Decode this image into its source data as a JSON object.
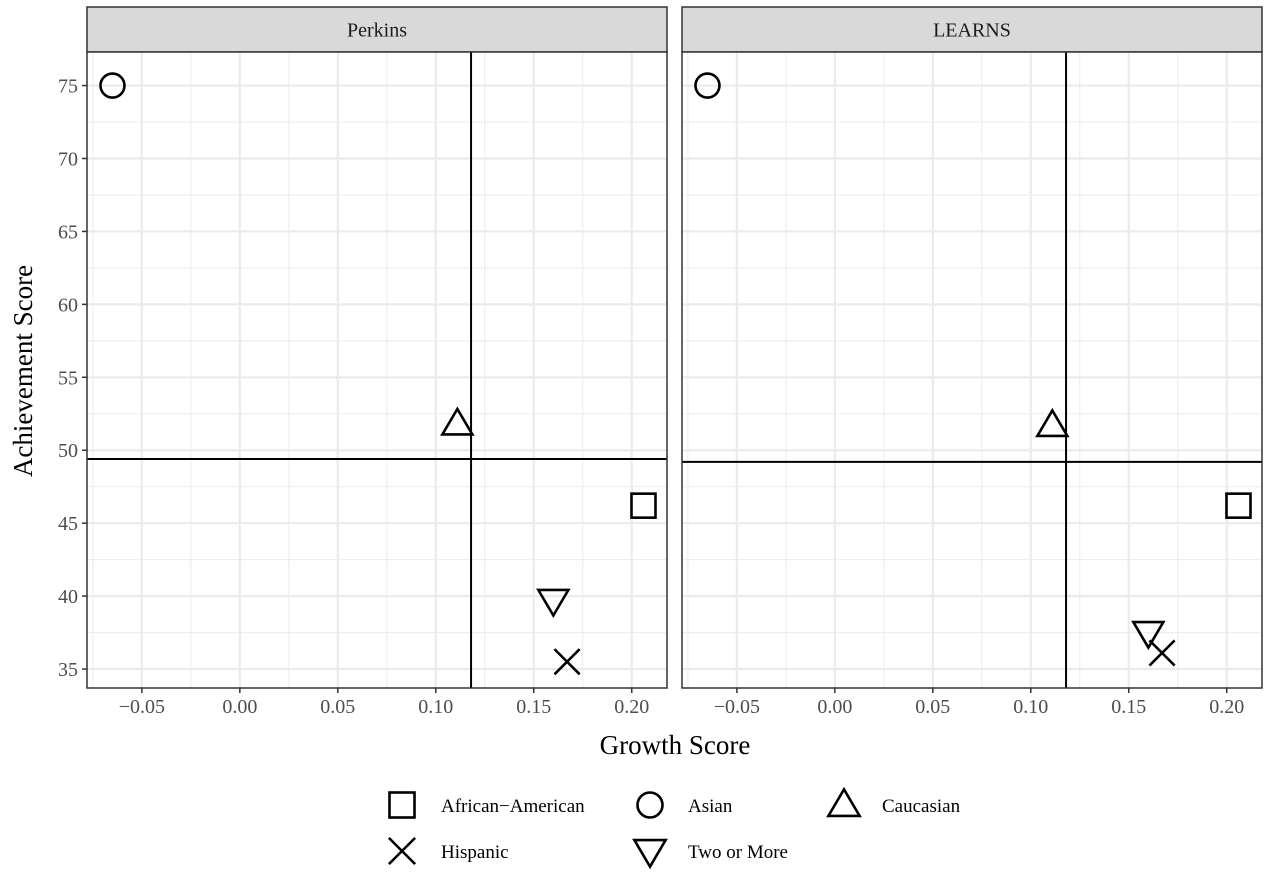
{
  "chart_data": {
    "type": "scatter",
    "xlabel": "Growth Score",
    "ylabel": "Achievement Score",
    "xlim": [
      -0.078,
      0.218
    ],
    "ylim": [
      33.7,
      77.3
    ],
    "x_ticks": [
      -0.05,
      0.0,
      0.05,
      0.1,
      0.15,
      0.2
    ],
    "x_tick_labels": [
      "−0.05",
      "0.00",
      "0.05",
      "0.10",
      "0.15",
      "0.20"
    ],
    "y_ticks": [
      35,
      40,
      45,
      50,
      55,
      60,
      65,
      70,
      75
    ],
    "y_tick_labels": [
      "35",
      "40",
      "45",
      "50",
      "55",
      "60",
      "65",
      "70",
      "75"
    ],
    "grid": true,
    "legend_position": "bottom",
    "legend": [
      {
        "name": "African−American",
        "shape": "square"
      },
      {
        "name": "Asian",
        "shape": "circle"
      },
      {
        "name": "Caucasian",
        "shape": "triangle-up"
      },
      {
        "name": "Hispanic",
        "shape": "cross"
      },
      {
        "name": "Two or More",
        "shape": "triangle-down"
      }
    ],
    "panels": [
      {
        "title": "Perkins",
        "vline_x": 0.118,
        "hline_y": 49.4,
        "points": [
          {
            "group": "African−American",
            "x": 0.206,
            "y": 46.2
          },
          {
            "group": "Asian",
            "x": -0.065,
            "y": 75.0
          },
          {
            "group": "Caucasian",
            "x": 0.111,
            "y": 51.8
          },
          {
            "group": "Hispanic",
            "x": 0.167,
            "y": 35.5
          },
          {
            "group": "Two or More",
            "x": 0.16,
            "y": 39.7
          }
        ]
      },
      {
        "title": "LEARNS",
        "vline_x": 0.118,
        "hline_y": 49.2,
        "points": [
          {
            "group": "African−American",
            "x": 0.206,
            "y": 46.2
          },
          {
            "group": "Asian",
            "x": -0.065,
            "y": 75.0
          },
          {
            "group": "Caucasian",
            "x": 0.111,
            "y": 51.7
          },
          {
            "group": "Hispanic",
            "x": 0.167,
            "y": 36.1
          },
          {
            "group": "Two or More",
            "x": 0.16,
            "y": 37.5
          }
        ]
      }
    ]
  },
  "colors": {
    "strip_fill": "#d9d9d9",
    "grid": "#ebebeb",
    "frame": "#333333",
    "ink": "#000000"
  }
}
